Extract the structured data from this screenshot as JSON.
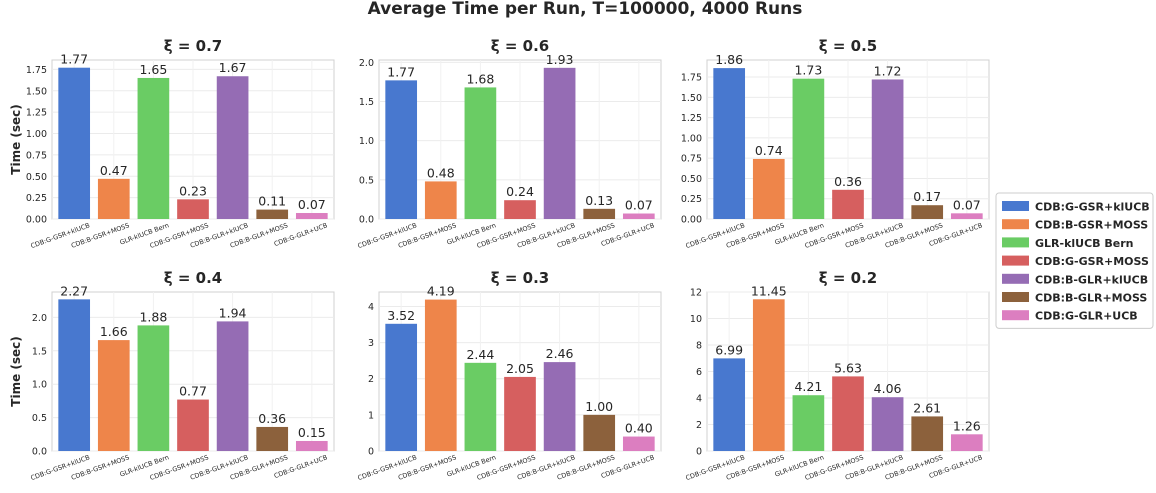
{
  "figure_title": "Average Time per Run, T=100000, 4000 Runs",
  "ylabel": "Time (sec)",
  "legend": {
    "placement": "right",
    "entries": [
      {
        "label": "CDB:G-GSR+klUCB",
        "color": "#4878cf"
      },
      {
        "label": "CDB:B-GSR+MOSS",
        "color": "#ee854a"
      },
      {
        "label": "GLR-klUCB Bern",
        "color": "#6acc64"
      },
      {
        "label": "CDB:G-GSR+MOSS",
        "color": "#d65f5f"
      },
      {
        "label": "CDB:B-GLR+klUCB",
        "color": "#956cb4"
      },
      {
        "label": "CDB:B-GLR+MOSS",
        "color": "#8c613c"
      },
      {
        "label": "CDB:G-GLR+UCB",
        "color": "#dc7ec0"
      }
    ]
  },
  "chart_data": [
    {
      "type": "bar",
      "title": "ξ = 0.7",
      "ylabel": "Time (sec)",
      "grid": true,
      "categories": [
        "CDB:G-GSR+klUCB",
        "CDB:B-GSR+MOSS",
        "GLR-klUCB Bern",
        "CDB:G-GSR+MOSS",
        "CDB:B-GLR+klUCB",
        "CDB:B-GLR+MOSS",
        "CDB:G-GLR+UCB"
      ],
      "values": [
        1.77,
        0.47,
        1.65,
        0.23,
        1.67,
        0.11,
        0.07
      ],
      "value_labels": [
        "1.77",
        "0.47",
        "1.65",
        "0.23",
        "1.67",
        "0.11",
        "0.07"
      ],
      "ylim": [
        0,
        1.86
      ],
      "yticks": [
        "0.00",
        "0.25",
        "0.50",
        "0.75",
        "1.00",
        "1.25",
        "1.50",
        "1.75"
      ],
      "ytick_values": [
        0,
        0.25,
        0.5,
        0.75,
        1.0,
        1.25,
        1.5,
        1.75
      ]
    },
    {
      "type": "bar",
      "title": "ξ = 0.6",
      "ylabel": "",
      "grid": true,
      "categories": [
        "CDB:G-GSR+klUCB",
        "CDB:B-GSR+MOSS",
        "GLR-klUCB Bern",
        "CDB:G-GSR+MOSS",
        "CDB:B-GLR+klUCB",
        "CDB:B-GLR+MOSS",
        "CDB:G-GLR+UCB"
      ],
      "values": [
        1.77,
        0.48,
        1.68,
        0.24,
        1.93,
        0.13,
        0.07
      ],
      "value_labels": [
        "1.77",
        "0.48",
        "1.68",
        "0.24",
        "1.93",
        "0.13",
        "0.07"
      ],
      "ylim": [
        0,
        2.03
      ],
      "yticks": [
        "0.0",
        "0.5",
        "1.0",
        "1.5",
        "2.0"
      ],
      "ytick_values": [
        0,
        0.5,
        1.0,
        1.5,
        2.0
      ]
    },
    {
      "type": "bar",
      "title": "ξ = 0.5",
      "ylabel": "",
      "grid": true,
      "categories": [
        "CDB:G-GSR+klUCB",
        "CDB:B-GSR+MOSS",
        "GLR-klUCB Bern",
        "CDB:G-GSR+MOSS",
        "CDB:B-GLR+klUCB",
        "CDB:B-GLR+MOSS",
        "CDB:G-GLR+UCB"
      ],
      "values": [
        1.86,
        0.74,
        1.73,
        0.36,
        1.72,
        0.17,
        0.07
      ],
      "value_labels": [
        "1.86",
        "0.74",
        "1.73",
        "0.36",
        "1.72",
        "0.17",
        "0.07"
      ],
      "ylim": [
        0,
        1.96
      ],
      "yticks": [
        "0.00",
        "0.25",
        "0.50",
        "0.75",
        "1.00",
        "1.25",
        "1.50",
        "1.75"
      ],
      "ytick_values": [
        0,
        0.25,
        0.5,
        0.75,
        1.0,
        1.25,
        1.5,
        1.75
      ]
    },
    {
      "type": "bar",
      "title": "ξ = 0.4",
      "ylabel": "Time (sec)",
      "grid": true,
      "categories": [
        "CDB:G-GSR+klUCB",
        "CDB:B-GSR+MOSS",
        "GLR-klUCB Bern",
        "CDB:G-GSR+MOSS",
        "CDB:B-GLR+klUCB",
        "CDB:B-GLR+MOSS",
        "CDB:G-GLR+UCB"
      ],
      "values": [
        2.27,
        1.66,
        1.88,
        0.77,
        1.94,
        0.36,
        0.15
      ],
      "value_labels": [
        "2.27",
        "1.66",
        "1.88",
        "0.77",
        "1.94",
        "0.36",
        "0.15"
      ],
      "ylim": [
        0,
        2.38
      ],
      "yticks": [
        "0.0",
        "0.5",
        "1.0",
        "1.5",
        "2.0"
      ],
      "ytick_values": [
        0,
        0.5,
        1.0,
        1.5,
        2.0
      ]
    },
    {
      "type": "bar",
      "title": "ξ = 0.3",
      "ylabel": "",
      "grid": true,
      "categories": [
        "CDB:G-GSR+klUCB",
        "CDB:B-GSR+MOSS",
        "GLR-klUCB Bern",
        "CDB:G-GSR+MOSS",
        "CDB:B-GLR+klUCB",
        "CDB:B-GLR+MOSS",
        "CDB:G-GLR+UCB"
      ],
      "values": [
        3.52,
        4.19,
        2.44,
        2.05,
        2.46,
        1.0,
        0.4
      ],
      "value_labels": [
        "3.52",
        "4.19",
        "2.44",
        "2.05",
        "2.46",
        "1.00",
        "0.40"
      ],
      "ylim": [
        0,
        4.4
      ],
      "yticks": [
        "0",
        "1",
        "2",
        "3",
        "4"
      ],
      "ytick_values": [
        0,
        1,
        2,
        3,
        4
      ]
    },
    {
      "type": "bar",
      "title": "ξ = 0.2",
      "ylabel": "",
      "grid": true,
      "categories": [
        "CDB:G-GSR+klUCB",
        "CDB:B-GSR+MOSS",
        "GLR-klUCB Bern",
        "CDB:G-GSR+MOSS",
        "CDB:B-GLR+klUCB",
        "CDB:B-GLR+MOSS",
        "CDB:G-GLR+UCB"
      ],
      "values": [
        6.99,
        11.45,
        4.21,
        5.63,
        4.06,
        2.61,
        1.26
      ],
      "value_labels": [
        "6.99",
        "11.45",
        "4.21",
        "5.63",
        "4.06",
        "2.61",
        "1.26"
      ],
      "ylim": [
        0,
        12.0
      ],
      "yticks": [
        "0",
        "2",
        "4",
        "6",
        "8",
        "10",
        "12"
      ],
      "ytick_values": [
        0,
        2,
        4,
        6,
        8,
        10,
        12
      ]
    }
  ]
}
